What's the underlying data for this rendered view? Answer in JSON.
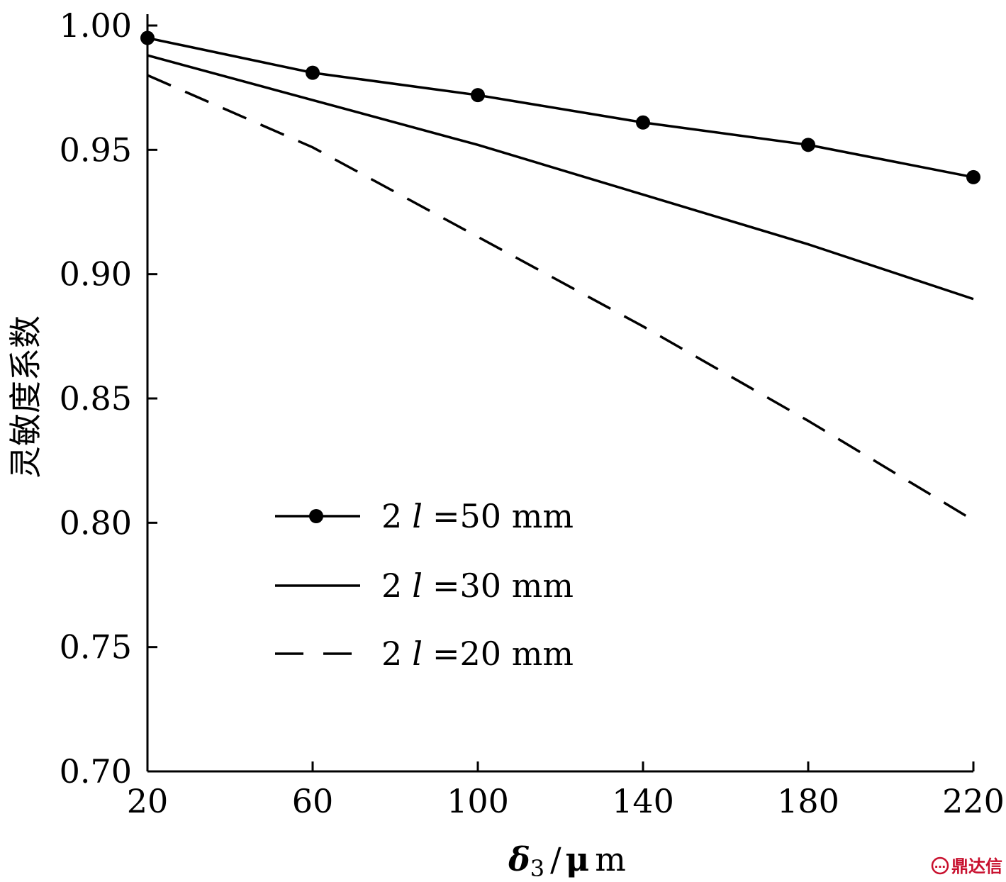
{
  "chart_data": {
    "type": "line",
    "xlabel_parts": [
      "δ",
      "3",
      "/",
      "μ",
      "m"
    ],
    "ylabel": "灵敏度系数",
    "x_ticks": [
      "20",
      "60",
      "100",
      "140",
      "180",
      "220"
    ],
    "y_ticks": [
      "0.70",
      "0.75",
      "0.80",
      "0.85",
      "0.90",
      "0.95",
      "1.00"
    ],
    "xlim": [
      20,
      220
    ],
    "ylim": [
      0.7,
      1.0
    ],
    "legend_position": "lower-center",
    "series": [
      {
        "name_parts": [
          "2",
          "l",
          "=50 mm"
        ],
        "style": "solid-markers",
        "x": [
          20,
          60,
          100,
          140,
          180,
          220
        ],
        "y": [
          0.995,
          0.981,
          0.972,
          0.961,
          0.952,
          0.939
        ]
      },
      {
        "name_parts": [
          "2",
          "l",
          "=30 mm"
        ],
        "style": "solid",
        "x": [
          20,
          60,
          100,
          140,
          180,
          220
        ],
        "y": [
          0.988,
          0.97,
          0.952,
          0.932,
          0.912,
          0.89
        ]
      },
      {
        "name_parts": [
          "2",
          "l",
          "=20 mm"
        ],
        "style": "dashed",
        "x": [
          20,
          60,
          100,
          140,
          180,
          220
        ],
        "y": [
          0.98,
          0.951,
          0.915,
          0.879,
          0.841,
          0.801
        ]
      }
    ]
  },
  "watermark": {
    "text": "鼎达信",
    "color": "#c8102e"
  }
}
